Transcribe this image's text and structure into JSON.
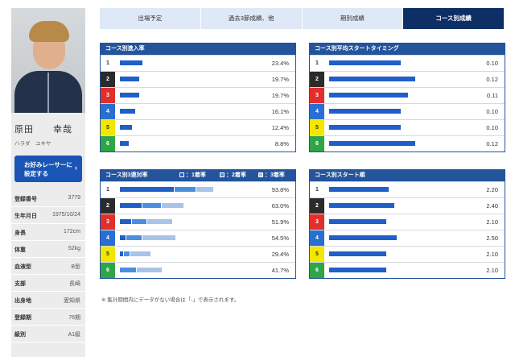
{
  "racer": {
    "name_kanji": "原田　　幸哉",
    "name_kana": "ハラダ　ユキヤ",
    "favorite_button": [
      "お好みレーサーに",
      "設定する"
    ],
    "profile": [
      {
        "label": "登録番号",
        "value": "3779"
      },
      {
        "label": "生年月日",
        "value": "1975/10/24"
      },
      {
        "label": "身長",
        "value": "172cm"
      },
      {
        "label": "体重",
        "value": "52kg"
      },
      {
        "label": "血液型",
        "value": "B型"
      },
      {
        "label": "支部",
        "value": "長崎"
      },
      {
        "label": "出身地",
        "value": "愛知県"
      },
      {
        "label": "登録期",
        "value": "76期"
      },
      {
        "label": "級別",
        "value": "A1級"
      }
    ]
  },
  "tabs": [
    "出場予定",
    "過去3節成績、他",
    "期別成績",
    "コース別成績"
  ],
  "lane_colors": [
    {
      "bg": "#ffffff",
      "fg": "#333333"
    },
    {
      "bg": "#2b2b2b",
      "fg": "#ffffff"
    },
    {
      "bg": "#e0302c",
      "fg": "#ffffff"
    },
    {
      "bg": "#2a6fd0",
      "fg": "#ffffff"
    },
    {
      "bg": "#f3e600",
      "fg": "#333333"
    },
    {
      "bg": "#2fa548",
      "fg": "#ffffff"
    }
  ],
  "bar_colors": {
    "first": "#1f5fc8",
    "second": "#4a8ee0",
    "third": "#a8c4e8"
  },
  "panels": {
    "course_entry": {
      "title": "コース別進入率",
      "lanes": [
        "1",
        "2",
        "3",
        "4",
        "5",
        "6"
      ],
      "values": [
        23.4,
        19.7,
        19.7,
        16.1,
        12.4,
        8.8
      ],
      "labels": [
        "23.4%",
        "19.7%",
        "19.7%",
        "16.1%",
        "12.4%",
        "8.8%"
      ]
    },
    "avg_st": {
      "title": "コース別平均スタートタイミング",
      "lanes": [
        "1",
        "2",
        "3",
        "4",
        "5",
        "6"
      ],
      "values": [
        0.1,
        0.12,
        0.11,
        0.1,
        0.1,
        0.12
      ],
      "labels": [
        "0.10",
        "0.12",
        "0.11",
        "0.10",
        "0.10",
        "0.12"
      ]
    },
    "top3": {
      "title": "コース別3連対率",
      "legend": [
        "：1着率",
        "：2着率",
        "：3着率"
      ],
      "lanes": [
        "1",
        "2",
        "3",
        "4",
        "5",
        "6"
      ],
      "labels": [
        "93.8%",
        "63.0%",
        "51.9%",
        "54.5%",
        "29.4%",
        "41.7%"
      ],
      "segments": [
        [
          54.7,
          21.9,
          17.2
        ],
        [
          22.2,
          18.5,
          22.2
        ],
        [
          11.1,
          14.8,
          25.9
        ],
        [
          6.1,
          15.2,
          33.3
        ],
        [
          2.9,
          5.9,
          20.6
        ],
        [
          0,
          16.7,
          25.0
        ]
      ]
    },
    "start_rank": {
      "title": "コース別スタート順",
      "lanes": [
        "1",
        "2",
        "3",
        "4",
        "5",
        "6"
      ],
      "values": [
        2.2,
        2.4,
        2.1,
        2.5,
        2.1,
        2.1
      ],
      "labels": [
        "2.20",
        "2.40",
        "2.10",
        "2.50",
        "2.10",
        "2.10"
      ]
    }
  },
  "note": "※ 集計期間内にデータがない場合は「-」で表示されます。"
}
